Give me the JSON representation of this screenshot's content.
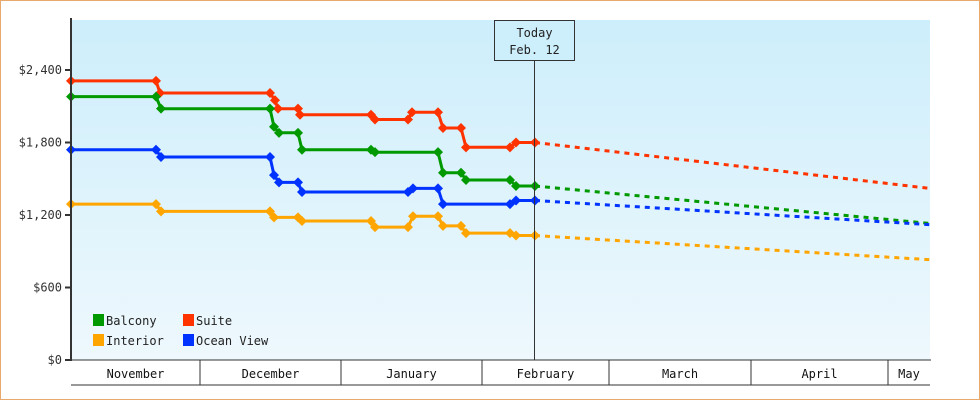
{
  "chart_data": {
    "type": "line",
    "title": "",
    "xlabel": "",
    "ylabel": "",
    "ylim": [
      0,
      2800
    ],
    "y_ticks": [
      "$0",
      "$600",
      "$1,200",
      "$1,800",
      "$2,400"
    ],
    "y_tick_values": [
      0,
      600,
      1200,
      1800,
      2400
    ],
    "x_months": [
      "November",
      "December",
      "January",
      "February",
      "March",
      "April",
      "May"
    ],
    "today_marker": {
      "line1": "Today",
      "line2": "Feb. 12"
    },
    "legend_position": "bottom-left-inside",
    "grid": false,
    "series": [
      {
        "name": "Suite",
        "color": "#ff3300",
        "historical": [
          [
            71,
            2310
          ],
          [
            156,
            2310
          ],
          [
            160,
            2210
          ],
          [
            270,
            2210
          ],
          [
            275,
            2150
          ],
          [
            278,
            2080
          ],
          [
            298,
            2080
          ],
          [
            300,
            2030
          ],
          [
            371,
            2030
          ],
          [
            375,
            1990
          ],
          [
            408,
            1990
          ],
          [
            412,
            2050
          ],
          [
            438,
            2050
          ],
          [
            443,
            1920
          ],
          [
            461,
            1920
          ],
          [
            466,
            1760
          ],
          [
            510,
            1760
          ],
          [
            516,
            1800
          ],
          [
            535,
            1800
          ]
        ],
        "forecast": [
          [
            535,
            1800
          ],
          [
            930,
            1420
          ]
        ]
      },
      {
        "name": "Balcony",
        "color": "#009900",
        "historical": [
          [
            71,
            2180
          ],
          [
            156,
            2180
          ],
          [
            161,
            2080
          ],
          [
            270,
            2080
          ],
          [
            274,
            1930
          ],
          [
            279,
            1880
          ],
          [
            298,
            1880
          ],
          [
            302,
            1740
          ],
          [
            371,
            1740
          ],
          [
            375,
            1720
          ],
          [
            438,
            1720
          ],
          [
            443,
            1550
          ],
          [
            461,
            1550
          ],
          [
            466,
            1490
          ],
          [
            510,
            1490
          ],
          [
            516,
            1440
          ],
          [
            535,
            1440
          ]
        ],
        "forecast": [
          [
            535,
            1440
          ],
          [
            930,
            1130
          ]
        ]
      },
      {
        "name": "Ocean View",
        "color": "#0033ff",
        "historical": [
          [
            71,
            1740
          ],
          [
            156,
            1740
          ],
          [
            161,
            1680
          ],
          [
            270,
            1680
          ],
          [
            274,
            1530
          ],
          [
            279,
            1470
          ],
          [
            298,
            1470
          ],
          [
            302,
            1390
          ],
          [
            408,
            1390
          ],
          [
            413,
            1420
          ],
          [
            438,
            1420
          ],
          [
            443,
            1290
          ],
          [
            510,
            1290
          ],
          [
            516,
            1320
          ],
          [
            535,
            1320
          ]
        ],
        "forecast": [
          [
            535,
            1320
          ],
          [
            930,
            1120
          ]
        ]
      },
      {
        "name": "Interior",
        "color": "#ffa500",
        "historical": [
          [
            71,
            1290
          ],
          [
            156,
            1290
          ],
          [
            161,
            1230
          ],
          [
            270,
            1230
          ],
          [
            274,
            1180
          ],
          [
            298,
            1180
          ],
          [
            302,
            1150
          ],
          [
            371,
            1150
          ],
          [
            375,
            1100
          ],
          [
            408,
            1100
          ],
          [
            413,
            1190
          ],
          [
            438,
            1190
          ],
          [
            443,
            1110
          ],
          [
            461,
            1110
          ],
          [
            466,
            1050
          ],
          [
            510,
            1050
          ],
          [
            516,
            1030
          ],
          [
            535,
            1030
          ]
        ],
        "forecast": [
          [
            535,
            1030
          ],
          [
            930,
            830
          ]
        ]
      }
    ]
  },
  "legend": {
    "items": [
      {
        "label": "Balcony",
        "color": "#009900"
      },
      {
        "label": "Suite",
        "color": "#ff3300"
      },
      {
        "label": "Interior",
        "color": "#ffa500"
      },
      {
        "label": "Ocean View",
        "color": "#0033ff"
      }
    ]
  }
}
